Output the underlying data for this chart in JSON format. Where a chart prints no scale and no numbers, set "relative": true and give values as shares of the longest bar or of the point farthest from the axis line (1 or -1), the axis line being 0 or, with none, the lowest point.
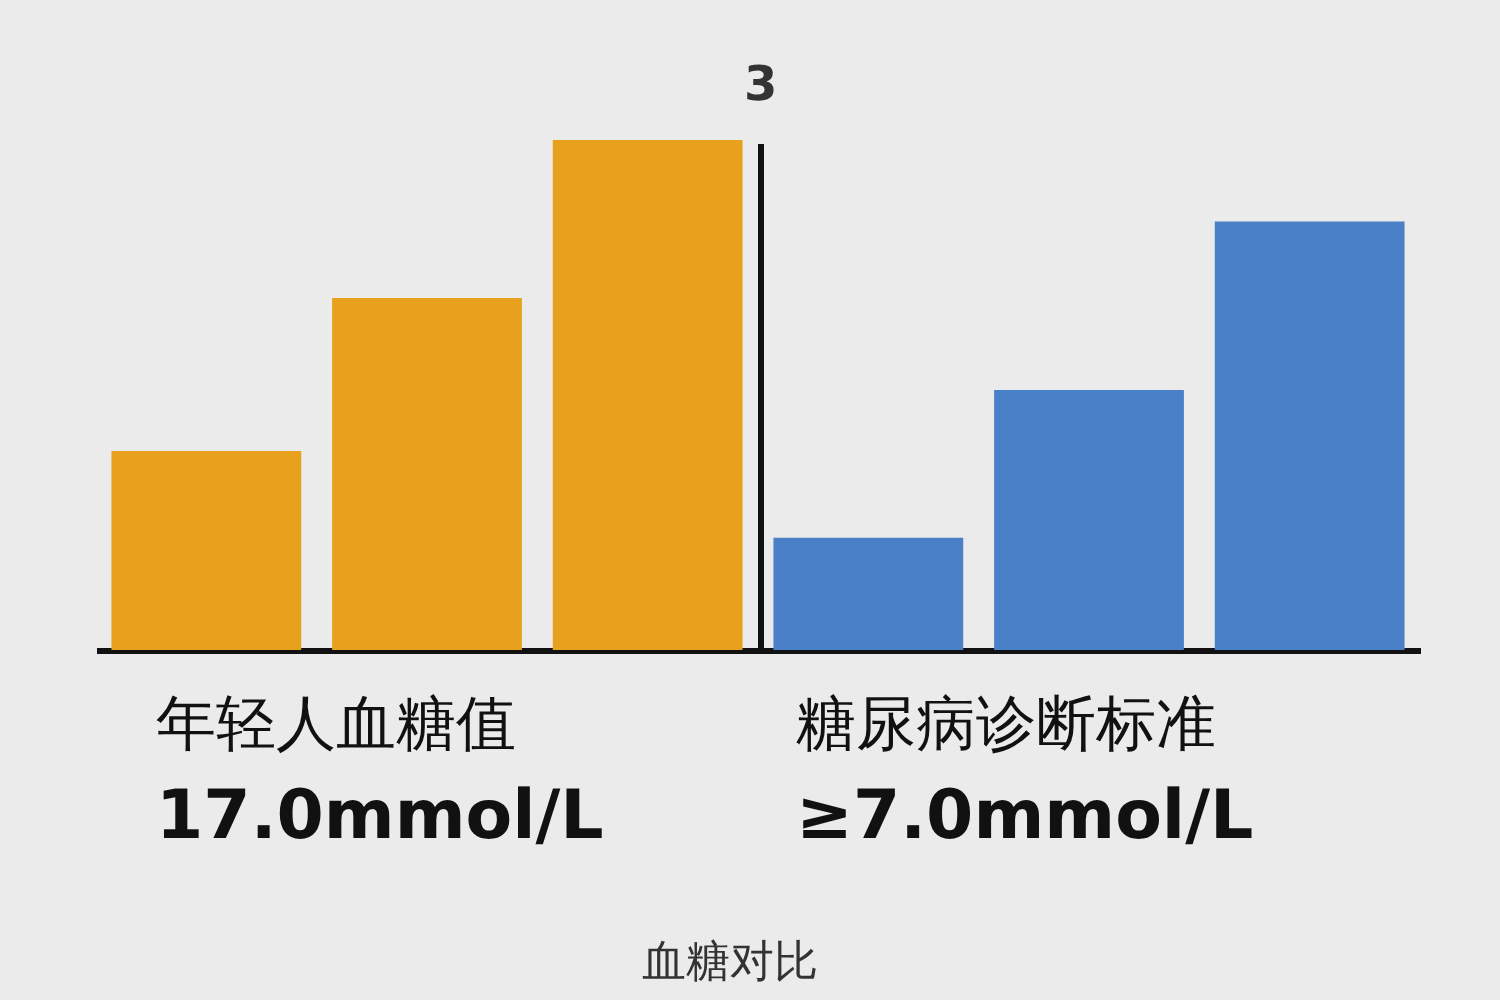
{
  "chart_data": {
    "type": "bar",
    "relative": true,
    "categories": [
      null,
      null,
      null,
      null,
      null,
      null
    ],
    "values": [
      0.39,
      0.69,
      1.0,
      0.22,
      0.51,
      0.84
    ],
    "colors": [
      "#e8a11c",
      "#e8a11c",
      "#e8a11c",
      "#4a80c8",
      "#4a80c8",
      "#4a80c8"
    ],
    "annotations": [
      "3",
      "年轻人血糖值",
      "17.0mmol/L",
      "糖尿病诊断标准",
      "≥7.0mmol/L",
      "血糖对比"
    ]
  }
}
